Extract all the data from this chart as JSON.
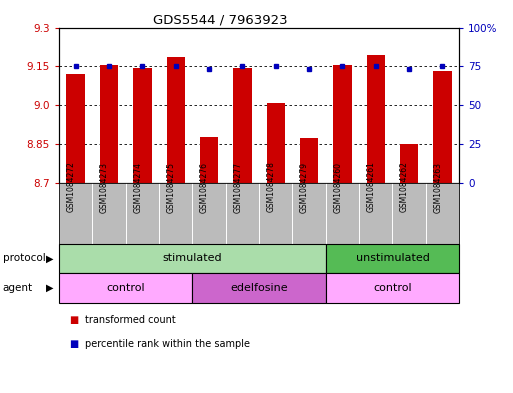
{
  "title": "GDS5544 / 7963923",
  "samples": [
    "GSM1084272",
    "GSM1084273",
    "GSM1084274",
    "GSM1084275",
    "GSM1084276",
    "GSM1084277",
    "GSM1084278",
    "GSM1084279",
    "GSM1084260",
    "GSM1084261",
    "GSM1084262",
    "GSM1084263"
  ],
  "bar_values": [
    9.12,
    9.155,
    9.142,
    9.185,
    8.878,
    9.143,
    9.01,
    8.874,
    9.155,
    9.195,
    8.848,
    9.13
  ],
  "dot_values": [
    75,
    75,
    75,
    75,
    73,
    75,
    75,
    73,
    75,
    75,
    73,
    75
  ],
  "ylim_left": [
    8.7,
    9.3
  ],
  "ylim_right": [
    0,
    100
  ],
  "yticks_left": [
    8.7,
    8.85,
    9.0,
    9.15,
    9.3
  ],
  "yticks_right": [
    0,
    25,
    50,
    75,
    100
  ],
  "ytick_labels_right": [
    "0",
    "25",
    "50",
    "75",
    "100%"
  ],
  "bar_color": "#CC0000",
  "dot_color": "#0000BB",
  "protocol_row": [
    {
      "label": "stimulated",
      "start": 0,
      "end": 8,
      "color": "#AADDAA"
    },
    {
      "label": "unstimulated",
      "start": 8,
      "end": 12,
      "color": "#55BB55"
    }
  ],
  "agent_row": [
    {
      "label": "control",
      "start": 0,
      "end": 4,
      "color": "#FFAAFF"
    },
    {
      "label": "edelfosine",
      "start": 4,
      "end": 8,
      "color": "#CC66CC"
    },
    {
      "label": "control",
      "start": 8,
      "end": 12,
      "color": "#FFAAFF"
    }
  ],
  "legend_items": [
    {
      "label": "transformed count",
      "color": "#CC0000"
    },
    {
      "label": "percentile rank within the sample",
      "color": "#0000BB"
    }
  ],
  "protocol_label": "protocol",
  "agent_label": "agent",
  "bg_color": "#FFFFFF",
  "sample_bg_color": "#BBBBBB",
  "bar_width": 0.55
}
